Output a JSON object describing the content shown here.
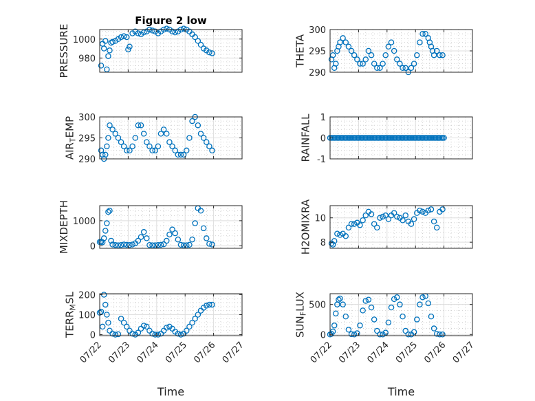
{
  "figure": {
    "marker_color": "#0072bd",
    "background": "#ffffff"
  },
  "chart_data": [
    {
      "type": "scatter",
      "title": "Figure 2 low",
      "ylabel": "PRESSURE",
      "ylim": [
        965,
        1010
      ],
      "yticks": [
        980,
        1000
      ],
      "xlabels": false,
      "x": [
        0.05,
        0.1,
        0.15,
        0.2,
        0.25,
        0.3,
        0.35,
        0.4,
        0.45,
        0.55,
        0.65,
        0.75,
        0.85,
        0.95,
        1.0,
        1.05,
        1.15,
        1.25,
        1.35,
        1.45,
        1.55,
        1.65,
        1.75,
        1.85,
        1.95,
        2.05,
        2.15,
        2.25,
        2.35,
        2.45,
        2.55,
        2.65,
        2.75,
        2.85,
        2.95,
        3.05,
        3.15,
        3.25,
        3.35,
        3.45,
        3.55,
        3.65,
        3.75,
        3.85,
        3.95
      ],
      "y": [
        972,
        995,
        990,
        998,
        968,
        982,
        988,
        996,
        997,
        998,
        1000,
        1002,
        1003,
        1002,
        989,
        992,
        1006,
        1008,
        1006,
        1005,
        1007,
        1008,
        1010,
        1009,
        1008,
        1006,
        1008,
        1010,
        1011,
        1010,
        1008,
        1007,
        1008,
        1010,
        1011,
        1010,
        1008,
        1005,
        1002,
        998,
        994,
        990,
        988,
        986,
        985
      ]
    },
    {
      "type": "scatter",
      "ylabel": "THETA",
      "ylim": [
        290,
        300
      ],
      "yticks": [
        290,
        295,
        300
      ],
      "xlabels": false,
      "x": [
        0.05,
        0.1,
        0.15,
        0.2,
        0.25,
        0.3,
        0.35,
        0.45,
        0.55,
        0.65,
        0.75,
        0.85,
        0.95,
        1.05,
        1.15,
        1.25,
        1.35,
        1.45,
        1.55,
        1.65,
        1.75,
        1.85,
        1.95,
        2.05,
        2.15,
        2.25,
        2.35,
        2.45,
        2.55,
        2.65,
        2.75,
        2.85,
        2.95,
        3.05,
        3.15,
        3.25,
        3.35,
        3.45,
        3.5,
        3.55,
        3.6,
        3.65,
        3.75,
        3.85,
        3.95
      ],
      "y": [
        293,
        294,
        291,
        292,
        295,
        296,
        297,
        298,
        297,
        296,
        295,
        294,
        293,
        292,
        292,
        293,
        295,
        294,
        292,
        291,
        291,
        292,
        294,
        296,
        297,
        295,
        293,
        292,
        291,
        291,
        290,
        291,
        292,
        294,
        297,
        299,
        299,
        298,
        297,
        296,
        295,
        294,
        295,
        294,
        294
      ]
    },
    {
      "type": "scatter",
      "ylabel": "AIR_TEMP",
      "ylim": [
        290,
        300
      ],
      "yticks": [
        290,
        295,
        300
      ],
      "xlabels": false,
      "x": [
        0.05,
        0.1,
        0.15,
        0.2,
        0.25,
        0.3,
        0.35,
        0.45,
        0.55,
        0.65,
        0.75,
        0.85,
        0.95,
        1.05,
        1.15,
        1.25,
        1.35,
        1.45,
        1.55,
        1.65,
        1.75,
        1.85,
        1.95,
        2.05,
        2.15,
        2.25,
        2.35,
        2.45,
        2.55,
        2.65,
        2.75,
        2.85,
        2.95,
        3.05,
        3.15,
        3.25,
        3.35,
        3.45,
        3.55,
        3.65,
        3.75,
        3.85,
        3.95
      ],
      "y": [
        292,
        291,
        290,
        291,
        293,
        295,
        298,
        297,
        296,
        295,
        294,
        293,
        292,
        292,
        293,
        295,
        298,
        298,
        296,
        294,
        293,
        292,
        292,
        293,
        296,
        297,
        296,
        294,
        293,
        292,
        291,
        291,
        291,
        292,
        295,
        299,
        300,
        298,
        296,
        295,
        294,
        293,
        292
      ]
    },
    {
      "type": "scatter",
      "ylabel": "RAINFALL",
      "ylim": [
        -1,
        1
      ],
      "yticks": [
        -1,
        0,
        1
      ],
      "xlabels": false,
      "x_step": 0.05,
      "x_start": 0.0,
      "x_end": 4.0,
      "constant_y": 0
    },
    {
      "type": "scatter",
      "ylabel": "MIXDEPTH",
      "ylim": [
        -100,
        1600
      ],
      "yticks": [
        0,
        1000
      ],
      "xlabels": false,
      "x": [
        0.0,
        0.05,
        0.1,
        0.15,
        0.2,
        0.25,
        0.3,
        0.35,
        0.4,
        0.45,
        0.55,
        0.65,
        0.75,
        0.85,
        0.95,
        1.05,
        1.15,
        1.25,
        1.35,
        1.45,
        1.55,
        1.65,
        1.75,
        1.85,
        1.95,
        2.05,
        2.15,
        2.25,
        2.35,
        2.45,
        2.55,
        2.65,
        2.75,
        2.85,
        2.95,
        3.05,
        3.15,
        3.25,
        3.35,
        3.45,
        3.55,
        3.65,
        3.75,
        3.85,
        3.95
      ],
      "y": [
        150,
        160,
        140,
        300,
        600,
        900,
        1350,
        1400,
        200,
        50,
        30,
        20,
        30,
        50,
        40,
        30,
        50,
        100,
        200,
        350,
        550,
        300,
        30,
        20,
        20,
        30,
        40,
        60,
        200,
        450,
        650,
        500,
        250,
        40,
        20,
        20,
        40,
        250,
        900,
        1500,
        1400,
        700,
        300,
        80,
        50
      ]
    },
    {
      "type": "scatter",
      "ylabel": "H2OMIXRA",
      "ylim": [
        7.5,
        11
      ],
      "yticks": [
        8,
        10
      ],
      "xlabels": false,
      "x": [
        0.05,
        0.1,
        0.15,
        0.25,
        0.35,
        0.45,
        0.55,
        0.65,
        0.75,
        0.85,
        0.95,
        1.05,
        1.15,
        1.25,
        1.35,
        1.45,
        1.55,
        1.65,
        1.75,
        1.85,
        1.95,
        2.05,
        2.15,
        2.25,
        2.35,
        2.45,
        2.55,
        2.65,
        2.75,
        2.85,
        2.95,
        3.05,
        3.15,
        3.25,
        3.35,
        3.45,
        3.55,
        3.65,
        3.75,
        3.85,
        3.95
      ],
      "y": [
        7.9,
        7.8,
        8.1,
        8.7,
        8.6,
        8.7,
        8.5,
        9.2,
        9.5,
        9.5,
        9.6,
        9.4,
        9.8,
        10.2,
        10.5,
        10.3,
        9.5,
        9.2,
        10,
        10.1,
        10.2,
        9.9,
        10.2,
        10.4,
        10.1,
        10,
        9.8,
        10.2,
        9.7,
        9.5,
        9.9,
        10.4,
        10.6,
        10.5,
        10.4,
        10.6,
        10.7,
        9.7,
        9.2,
        10.5,
        10.7
      ]
    },
    {
      "type": "scatter",
      "ylabel": "TERR_MSL",
      "ylim": [
        -5,
        205
      ],
      "yticks": [
        0,
        100,
        200
      ],
      "xlabels": true,
      "x": [
        0.0,
        0.05,
        0.1,
        0.15,
        0.2,
        0.25,
        0.3,
        0.35,
        0.45,
        0.55,
        0.65,
        0.75,
        0.85,
        0.95,
        1.05,
        1.15,
        1.25,
        1.35,
        1.45,
        1.55,
        1.65,
        1.75,
        1.85,
        1.95,
        2.05,
        2.15,
        2.25,
        2.35,
        2.45,
        2.55,
        2.65,
        2.75,
        2.85,
        2.95,
        3.05,
        3.15,
        3.25,
        3.35,
        3.45,
        3.55,
        3.65,
        3.75,
        3.85,
        3.95
      ],
      "y": [
        110,
        115,
        40,
        200,
        150,
        100,
        60,
        20,
        5,
        0,
        2,
        80,
        60,
        40,
        20,
        5,
        0,
        10,
        30,
        45,
        40,
        20,
        5,
        0,
        0,
        5,
        20,
        35,
        40,
        30,
        15,
        5,
        0,
        5,
        20,
        40,
        60,
        80,
        100,
        120,
        135,
        145,
        150,
        150
      ]
    },
    {
      "type": "scatter",
      "ylabel": "SUN_FLUX",
      "ylim": [
        -20,
        680
      ],
      "yticks": [
        0,
        500
      ],
      "xlabels": true,
      "x": [
        0.0,
        0.05,
        0.1,
        0.15,
        0.2,
        0.25,
        0.3,
        0.35,
        0.45,
        0.55,
        0.65,
        0.75,
        0.85,
        0.95,
        1.05,
        1.15,
        1.25,
        1.35,
        1.45,
        1.55,
        1.65,
        1.75,
        1.85,
        1.95,
        2.05,
        2.15,
        2.25,
        2.35,
        2.45,
        2.55,
        2.65,
        2.75,
        2.85,
        2.95,
        3.05,
        3.15,
        3.25,
        3.35,
        3.45,
        3.55,
        3.65,
        3.75,
        3.85,
        3.95
      ],
      "y": [
        0,
        10,
        50,
        150,
        350,
        500,
        580,
        600,
        500,
        300,
        80,
        5,
        0,
        20,
        150,
        400,
        560,
        580,
        450,
        250,
        60,
        0,
        0,
        30,
        200,
        450,
        590,
        620,
        500,
        300,
        60,
        0,
        0,
        40,
        250,
        500,
        620,
        640,
        520,
        300,
        100,
        10,
        0,
        0
      ]
    }
  ],
  "x_axis": {
    "label": "Time",
    "ticks": [
      "07/22",
      "07/23",
      "07/24",
      "07/25",
      "07/26",
      "07/27"
    ],
    "range_days": [
      0,
      5
    ]
  }
}
